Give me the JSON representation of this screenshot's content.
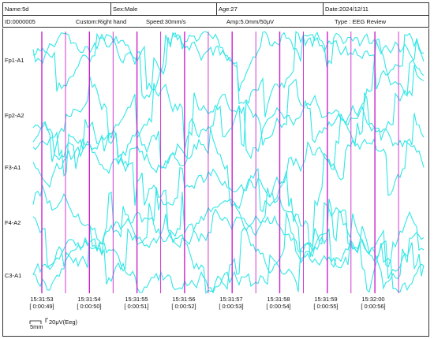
{
  "header": {
    "name": "Name:5d",
    "sex": "Sex:Male",
    "age": "Age:27",
    "date": "Date:2024/12/11",
    "id": "ID:0000005",
    "custom": "Custom:Right hand",
    "speed": "Speed:30mm/s",
    "amp": "Amp:5.0mm/50μV",
    "type": "Type : EEG Review"
  },
  "channels": [
    "Fp1-A1",
    "Fp2-A2",
    "F3-A1",
    "F4-A2",
    "C3-A1"
  ],
  "time_ticks": [
    {
      "time": "15:31:53",
      "elapsed": "[ 0:00:49]"
    },
    {
      "time": "15:31:54",
      "elapsed": "[ 0:00:50]"
    },
    {
      "time": "15:31:55",
      "elapsed": "[ 0:00:51]"
    },
    {
      "time": "15:31:56",
      "elapsed": "[ 0:00:52]"
    },
    {
      "time": "15:31:57",
      "elapsed": "[ 0:00:53]"
    },
    {
      "time": "15:31:58",
      "elapsed": "[ 0:00:54]"
    },
    {
      "time": "15:31:59",
      "elapsed": "[ 0:00:55]"
    },
    {
      "time": "15:32:00",
      "elapsed": "[ 0:00:56]"
    }
  ],
  "scale": {
    "time_label": "5mm",
    "amp_label": "20μV(Eeg)"
  },
  "colors": {
    "trace": "#33e6e6",
    "marker": "#cc22cc",
    "border": "#333333"
  }
}
